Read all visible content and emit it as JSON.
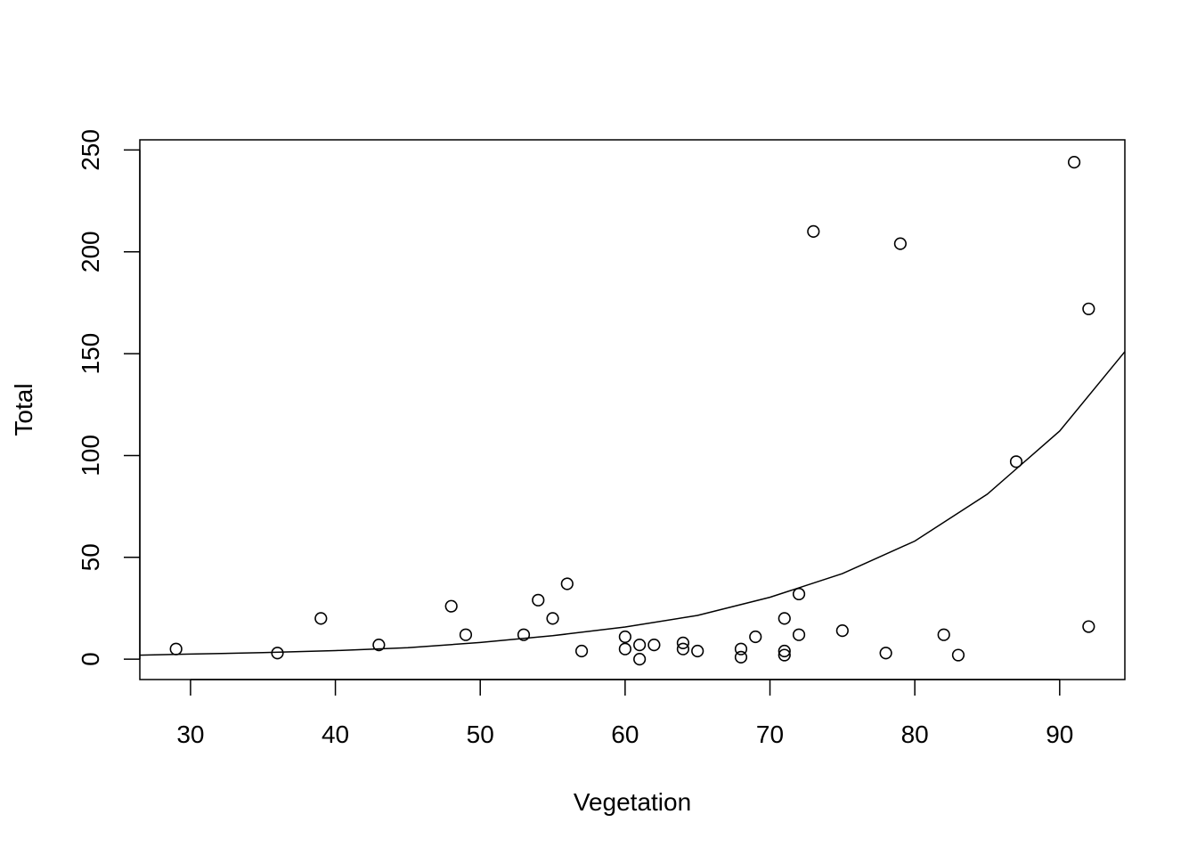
{
  "chart_data": {
    "type": "scatter",
    "xlabel": "Vegetation",
    "ylabel": "Total",
    "xlim": [
      26.5,
      94.5
    ],
    "ylim": [
      -10,
      255
    ],
    "x_ticks": [
      30,
      40,
      50,
      60,
      70,
      80,
      90
    ],
    "y_ticks": [
      0,
      50,
      100,
      150,
      200,
      250
    ],
    "grid": false,
    "points": [
      {
        "x": 29,
        "y": 5
      },
      {
        "x": 36,
        "y": 3
      },
      {
        "x": 39,
        "y": 20
      },
      {
        "x": 43,
        "y": 7
      },
      {
        "x": 48,
        "y": 26
      },
      {
        "x": 49,
        "y": 12
      },
      {
        "x": 53,
        "y": 12
      },
      {
        "x": 54,
        "y": 29
      },
      {
        "x": 55,
        "y": 20
      },
      {
        "x": 56,
        "y": 37
      },
      {
        "x": 57,
        "y": 4
      },
      {
        "x": 60,
        "y": 11
      },
      {
        "x": 60,
        "y": 5
      },
      {
        "x": 61,
        "y": 7
      },
      {
        "x": 61,
        "y": 0
      },
      {
        "x": 62,
        "y": 7
      },
      {
        "x": 64,
        "y": 8
      },
      {
        "x": 64,
        "y": 5
      },
      {
        "x": 65,
        "y": 4
      },
      {
        "x": 68,
        "y": 5
      },
      {
        "x": 68,
        "y": 1
      },
      {
        "x": 69,
        "y": 11
      },
      {
        "x": 71,
        "y": 20
      },
      {
        "x": 71,
        "y": 4
      },
      {
        "x": 71,
        "y": 2
      },
      {
        "x": 72,
        "y": 32
      },
      {
        "x": 72,
        "y": 12
      },
      {
        "x": 73,
        "y": 210
      },
      {
        "x": 75,
        "y": 14
      },
      {
        "x": 78,
        "y": 3
      },
      {
        "x": 79,
        "y": 204
      },
      {
        "x": 82,
        "y": 12
      },
      {
        "x": 83,
        "y": 2
      },
      {
        "x": 87,
        "y": 97
      },
      {
        "x": 91,
        "y": 244
      },
      {
        "x": 92,
        "y": 172
      },
      {
        "x": 92,
        "y": 16
      }
    ],
    "fitted_line": {
      "x": [
        26.5,
        30,
        35,
        40,
        45,
        50,
        55,
        60,
        65,
        70,
        75,
        80,
        85,
        90,
        94.5
      ],
      "y": [
        2,
        2.5,
        3.2,
        4.2,
        5.6,
        8.2,
        11.5,
        15.8,
        21.5,
        30.4,
        42,
        58,
        81,
        112,
        151
      ]
    }
  }
}
